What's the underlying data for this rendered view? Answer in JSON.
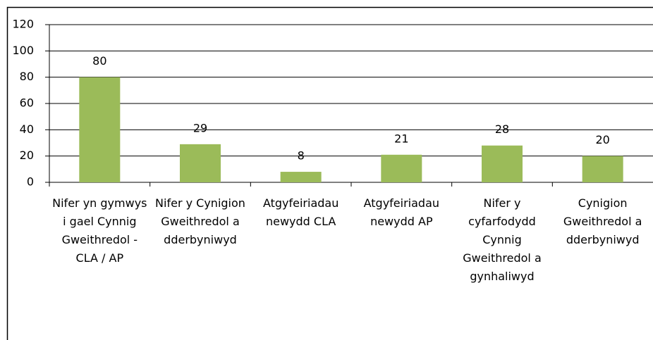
{
  "chart_data": {
    "type": "bar",
    "categories": [
      "Nifer yn gymwys i gael Cynnig Gweithredol - CLA / AP",
      "Nifer y Cynigion Gweithredol a dderbyniwyd",
      "Atgyfeiriadau newydd CLA",
      "Atgyfeiriadau newydd AP",
      "Nifer y cyfarfodydd Cynnig Gweithredol a gynhaliwyd",
      "Cynigion Gweithredol a dderbyniwyd"
    ],
    "values": [
      80,
      29,
      8,
      21,
      28,
      20
    ],
    "color": "#9bbb59",
    "ylim": [
      0,
      120
    ],
    "yticks": [
      0,
      20,
      40,
      60,
      80,
      100,
      120
    ],
    "grid": true
  }
}
